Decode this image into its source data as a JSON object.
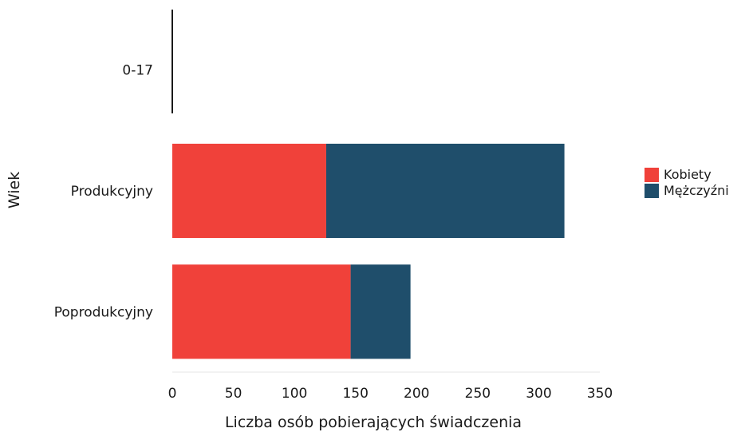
{
  "chart_data": {
    "type": "bar",
    "orientation": "horizontal",
    "stacked": true,
    "categories": [
      "0-17",
      "Produkcyjny",
      "Poprodukcyjny"
    ],
    "series": [
      {
        "name": "Kobiety",
        "values": [
          0,
          126,
          146
        ],
        "color": "#f0413a"
      },
      {
        "name": "Mężczyźni",
        "values": [
          0,
          195,
          49
        ],
        "color": "#1f4e6b"
      }
    ],
    "xlabel": "Liczba osób pobierających świadczenia",
    "ylabel": "Wiek",
    "xlim": [
      0,
      350
    ],
    "xticks": [
      "0",
      "50",
      "100",
      "150",
      "200",
      "250",
      "300",
      "350"
    ],
    "grid": false,
    "legend_position": "right"
  }
}
